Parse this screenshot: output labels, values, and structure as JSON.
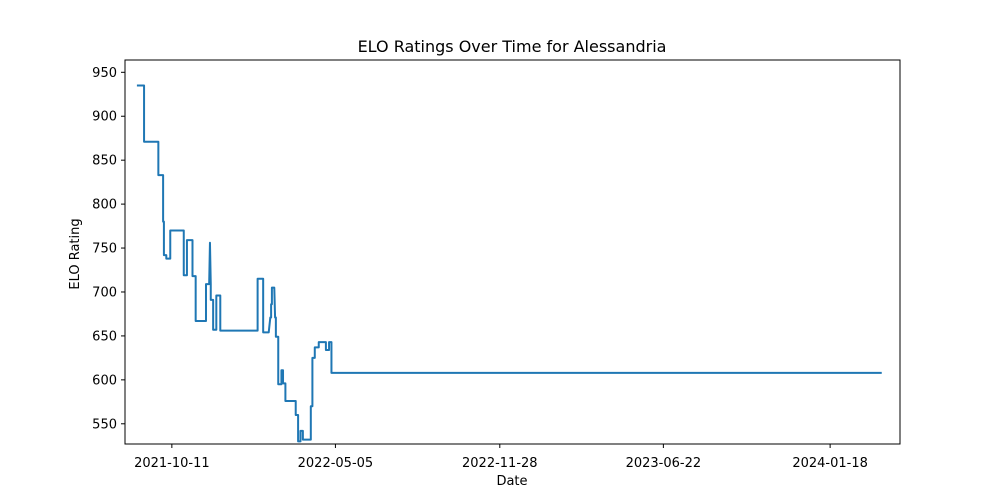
{
  "chart_data": {
    "type": "line",
    "title": "ELO Ratings Over Time for Alessandria",
    "xlabel": "Date",
    "ylabel": "ELO Rating",
    "x_ticks": [
      "2021-10-11",
      "2022-05-05",
      "2022-11-28",
      "2023-06-22",
      "2024-01-18"
    ],
    "y_ticks": [
      550,
      600,
      650,
      700,
      750,
      800,
      850,
      900,
      950
    ],
    "xlim": [
      "2021-08-13",
      "2024-04-15"
    ],
    "ylim": [
      527,
      964
    ],
    "grid": false,
    "line_color": "#1f77b4",
    "series": [
      {
        "x": [
          "2021-08-28",
          "2021-09-06",
          "2021-09-06",
          "2021-09-24",
          "2021-09-24",
          "2021-09-30",
          "2021-09-30",
          "2021-10-01",
          "2021-10-01",
          "2021-10-04",
          "2021-10-04",
          "2021-10-09",
          "2021-10-09",
          "2021-10-26",
          "2021-10-26",
          "2021-10-30",
          "2021-10-30",
          "2021-11-06",
          "2021-11-06",
          "2021-11-10",
          "2021-11-10",
          "2021-11-23",
          "2021-11-23",
          "2021-11-27",
          "2021-11-28",
          "2021-11-29",
          "2021-11-29",
          "2021-12-02",
          "2021-12-02",
          "2021-12-06",
          "2021-12-06",
          "2021-12-11",
          "2021-12-11",
          "2022-01-27",
          "2022-01-27",
          "2022-02-03",
          "2022-02-03",
          "2022-02-10",
          "2022-02-12",
          "2022-02-13",
          "2022-02-13",
          "2022-02-14",
          "2022-02-14",
          "2022-02-17",
          "2022-02-18",
          "2022-02-19",
          "2022-02-19",
          "2022-02-22",
          "2022-02-22",
          "2022-02-26",
          "2022-02-26",
          "2022-02-28",
          "2022-02-28",
          "2022-03-03",
          "2022-03-03",
          "2022-03-16",
          "2022-03-16",
          "2022-03-19",
          "2022-03-19",
          "2022-03-22",
          "2022-03-22",
          "2022-03-25",
          "2022-03-25",
          "2022-04-04",
          "2022-04-04",
          "2022-04-06",
          "2022-04-06",
          "2022-04-09",
          "2022-04-09",
          "2022-04-14",
          "2022-04-14",
          "2022-04-23",
          "2022-04-23",
          "2022-04-27",
          "2022-04-27",
          "2022-04-30",
          "2022-04-30",
          "2024-03-23"
        ],
        "y": [
          935,
          935,
          871,
          871,
          833,
          833,
          780,
          780,
          742,
          742,
          738,
          738,
          770,
          770,
          719,
          719,
          759,
          759,
          718,
          718,
          667,
          667,
          709,
          709,
          756,
          709,
          691,
          691,
          657,
          657,
          696,
          696,
          656,
          656,
          715,
          715,
          654,
          654,
          671,
          671,
          686,
          686,
          705,
          705,
          671,
          671,
          649,
          649,
          595,
          595,
          611,
          611,
          596,
          596,
          576,
          576,
          560,
          560,
          530,
          530,
          542,
          542,
          532,
          532,
          570,
          570,
          625,
          625,
          637,
          637,
          643,
          643,
          634,
          634,
          643,
          643,
          608,
          608
        ]
      }
    ]
  }
}
